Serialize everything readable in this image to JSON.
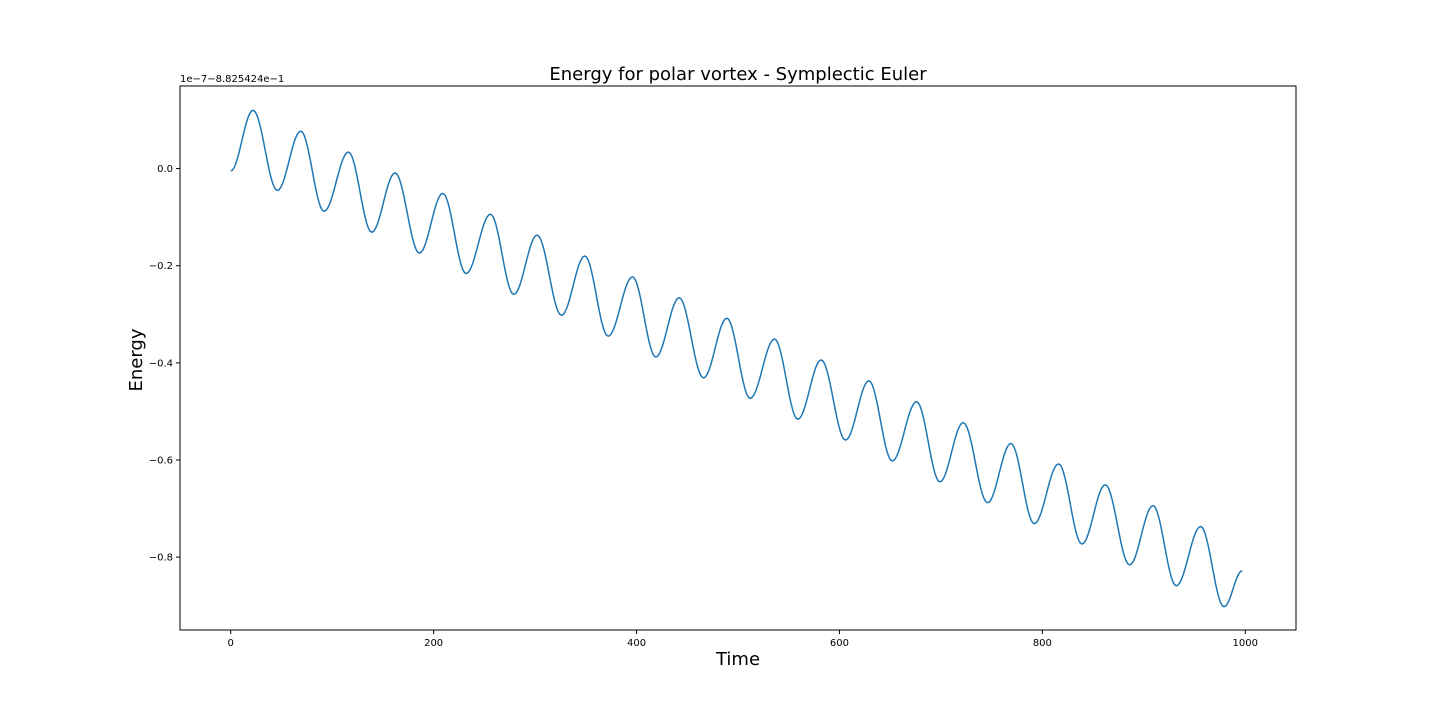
{
  "chart_data": {
    "type": "line",
    "title": "Energy for polar vortex - Symplectic Euler",
    "xlabel": "Time",
    "ylabel": "Energy",
    "y_offset_text": "1e−7−8.825424e−1",
    "xlim": [
      -50,
      1050
    ],
    "ylim": [
      -0.95,
      0.17
    ],
    "x_ticks": [
      0,
      200,
      400,
      600,
      800,
      1000
    ],
    "x_tick_labels": [
      "0",
      "200",
      "400",
      "600",
      "800",
      "1000"
    ],
    "y_ticks": [
      0.0,
      -0.2,
      -0.4,
      -0.6,
      -0.8
    ],
    "y_tick_labels": [
      "0.0",
      "−0.2",
      "−0.4",
      "−0.6",
      "−0.8"
    ],
    "grid": false,
    "series": [
      {
        "color": "#1f77b4",
        "description_points": {
          "x": [
            0,
            22,
            46,
            69,
            92,
            116,
            139,
            162,
            186,
            209,
            232,
            256,
            279,
            302,
            326,
            349,
            372,
            396,
            419,
            442,
            466,
            489,
            512,
            536,
            559,
            582,
            606,
            629,
            652,
            676,
            699,
            722,
            746,
            769,
            792,
            816,
            839,
            862,
            886,
            909,
            932,
            956,
            979,
            997
          ],
          "y": [
            -0.005,
            0.12,
            -0.045,
            0.077,
            -0.088,
            0.034,
            -0.131,
            -0.009,
            -0.174,
            -0.051,
            -0.216,
            -0.094,
            -0.259,
            -0.137,
            -0.302,
            -0.18,
            -0.345,
            -0.223,
            -0.388,
            -0.266,
            -0.431,
            -0.308,
            -0.473,
            -0.351,
            -0.516,
            -0.394,
            -0.559,
            -0.437,
            -0.602,
            -0.48,
            -0.645,
            -0.523,
            -0.688,
            -0.566,
            -0.731,
            -0.608,
            -0.773,
            -0.651,
            -0.816,
            -0.694,
            -0.859,
            -0.737,
            -0.902,
            -0.828
          ]
        }
      }
    ]
  }
}
